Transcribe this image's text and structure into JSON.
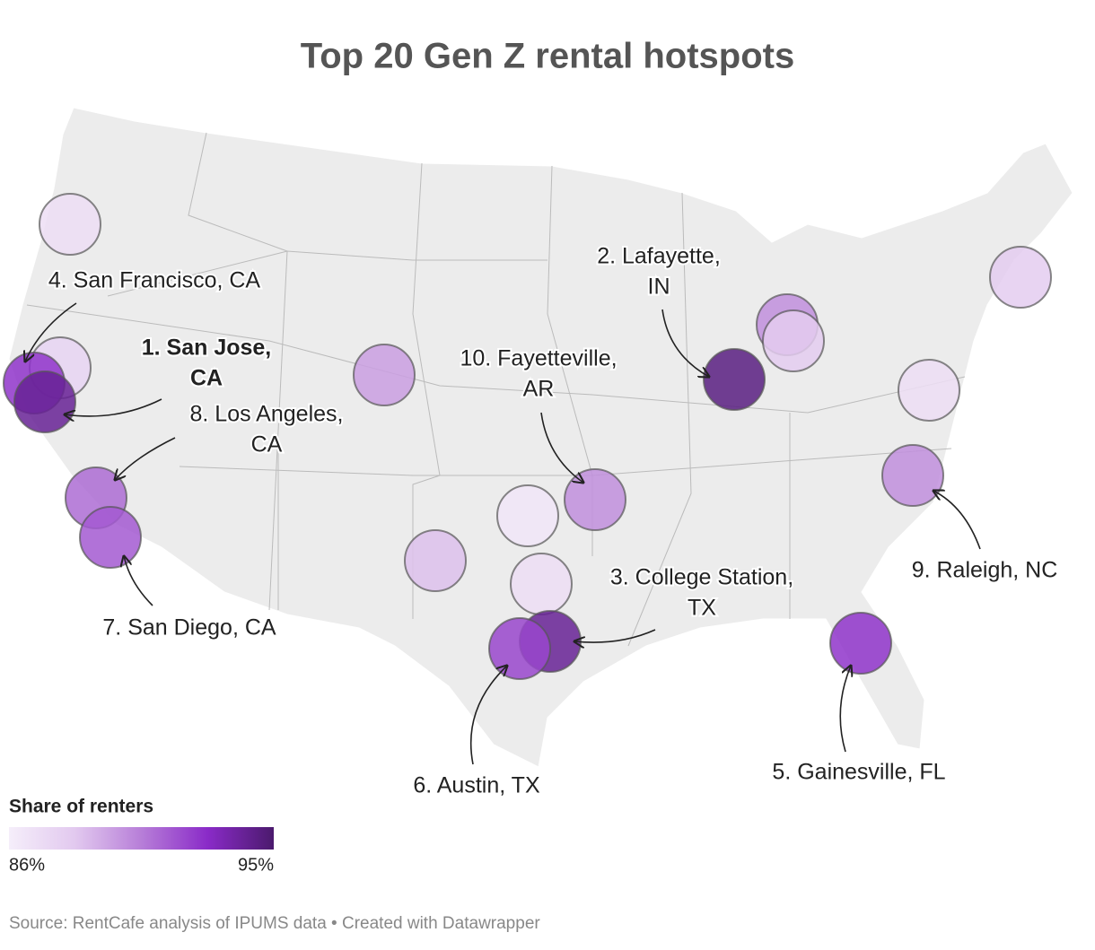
{
  "title": "Top 20 Gen Z rental hotspots",
  "annotations": [
    {
      "lines": [
        "4. San Francisco, CA"
      ],
      "bold": false
    },
    {
      "lines": [
        "1. San Jose,",
        "CA"
      ],
      "bold": true
    },
    {
      "lines": [
        "8. Los Angeles,",
        "CA"
      ],
      "bold": false
    },
    {
      "lines": [
        "7. San Diego, CA"
      ],
      "bold": false
    },
    {
      "lines": [
        "10. Fayetteville,",
        "AR"
      ],
      "bold": false
    },
    {
      "lines": [
        "2. Lafayette,",
        "IN"
      ],
      "bold": false
    },
    {
      "lines": [
        "3. College Station,",
        "TX"
      ],
      "bold": false
    },
    {
      "lines": [
        "9. Raleigh, NC"
      ],
      "bold": false
    },
    {
      "lines": [
        "6. Austin, TX"
      ],
      "bold": false
    },
    {
      "lines": [
        "5. Gainesville, FL"
      ],
      "bold": false
    }
  ],
  "markers": [
    87,
    87.5,
    92.5,
    94,
    91,
    91.5,
    89.5,
    94.5,
    90,
    88,
    88,
    87,
    90,
    90,
    86.5,
    88.5,
    87,
    94,
    92,
    92.5
  ],
  "legend": {
    "title": "Share of renters",
    "ticks": [
      {
        "value": 86,
        "label": "86%"
      },
      {
        "value": 95,
        "label": "95%"
      }
    ],
    "colors": [
      "#f5eefa",
      "#e2c9ef",
      "#b77ed8",
      "#8a2bc8",
      "#4b1a6d"
    ]
  },
  "source": "Source: RentCafe analysis of IPUMS data • Created with Datawrapper"
}
